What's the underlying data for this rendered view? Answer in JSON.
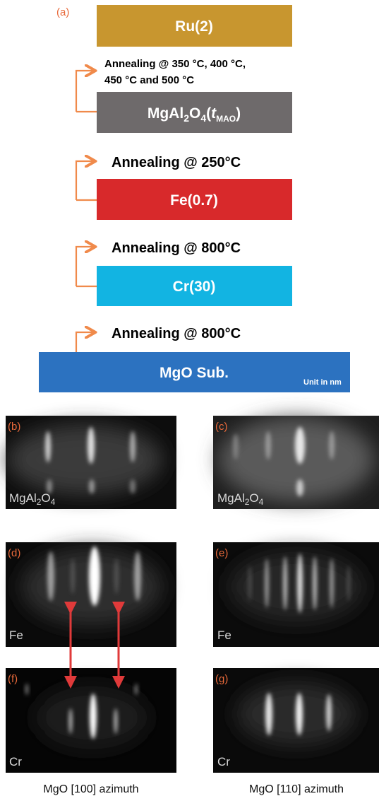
{
  "panel_a": {
    "label": "(a)",
    "layers": [
      {
        "label": "Ru(2)"
      },
      {
        "label_parts": [
          "MgAl",
          "2",
          "O",
          "4",
          "(",
          "t",
          "MAO",
          ")"
        ]
      },
      {
        "label": "Fe(0.7)"
      },
      {
        "label": "Cr(30)"
      },
      {
        "label": "MgO Sub."
      }
    ],
    "annealing": [
      {
        "lines": [
          "Annealing @ 350 °C, 400 °C,",
          "450 °C and 500 °C"
        ]
      },
      {
        "lines": [
          "Annealing @ 250°C"
        ]
      },
      {
        "lines": [
          "Annealing @ 800°C"
        ]
      },
      {
        "lines": [
          "Annealing @ 800°C"
        ]
      }
    ],
    "unit_note": "Unit in nm"
  },
  "panels": [
    {
      "label": "(b)",
      "material_parts": [
        "MgAl",
        "2",
        "O",
        "4"
      ]
    },
    {
      "label": "(c)",
      "material_parts": [
        "MgAl",
        "2",
        "O",
        "4"
      ]
    },
    {
      "label": "(d)",
      "material_parts": [
        "Fe"
      ]
    },
    {
      "label": "(e)",
      "material_parts": [
        "Fe"
      ]
    },
    {
      "label": "(f)",
      "material_parts": [
        "Cr"
      ]
    },
    {
      "label": "(g)",
      "material_parts": [
        "Cr"
      ]
    }
  ],
  "captions": [
    "MgO [100] azimuth",
    "MgO [110] azimuth"
  ]
}
